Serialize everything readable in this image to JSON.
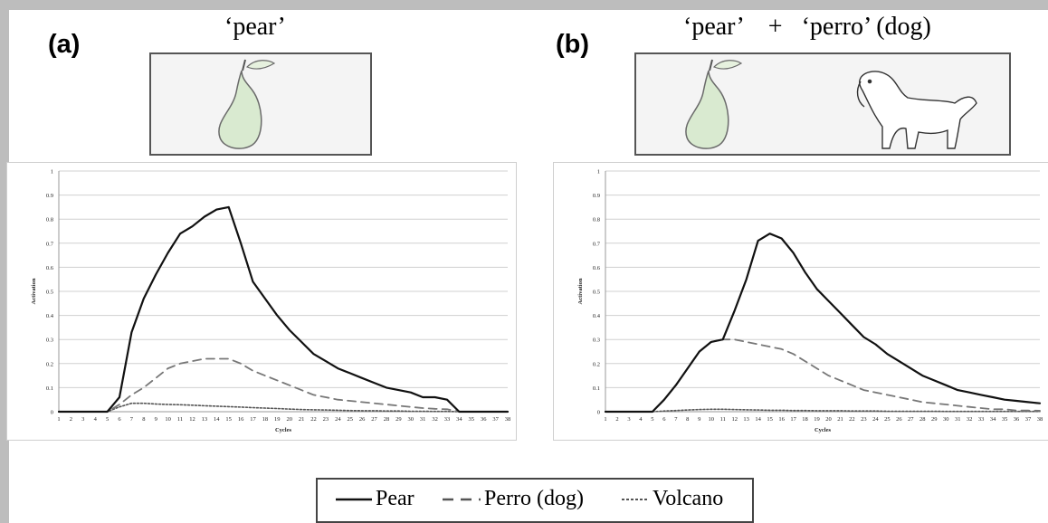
{
  "panels": [
    {
      "label": "(a)",
      "caption": "‘pear’"
    },
    {
      "label": "(b)",
      "caption": "‘pear’    +   ‘perro’ (dog)"
    }
  ],
  "legend": [
    {
      "label": "Pear",
      "style": "solid"
    },
    {
      "label": "Perro (dog)",
      "style": "dashed"
    },
    {
      "label": "Volcano",
      "style": "dotted"
    }
  ],
  "colors": {
    "pear": "#111111",
    "perro": "#777777",
    "volcano": "#555555",
    "grid": "#d0d0d0",
    "fruit": "#d9ead0"
  },
  "chart_data": [
    {
      "type": "line",
      "xlabel": "Cycles",
      "ylabel": "Activation",
      "ylim": [
        0,
        1
      ],
      "xlim": [
        1,
        38
      ],
      "yticks": [
        "0",
        "0.1",
        "0.2",
        "0.3",
        "0.4",
        "0.5",
        "0.6",
        "0.7",
        "0.8",
        "0.9",
        "1"
      ],
      "x": [
        1,
        2,
        3,
        4,
        5,
        6,
        7,
        8,
        9,
        10,
        11,
        12,
        13,
        14,
        15,
        16,
        17,
        18,
        19,
        20,
        21,
        22,
        23,
        24,
        25,
        26,
        27,
        28,
        29,
        30,
        31,
        32,
        33,
        34,
        35,
        36,
        37,
        38
      ],
      "series": [
        {
          "name": "Pear",
          "style": "solid",
          "values": [
            0,
            0,
            0,
            0,
            0,
            0.06,
            0.33,
            0.47,
            0.57,
            0.66,
            0.74,
            0.77,
            0.81,
            0.84,
            0.85,
            0.7,
            0.54,
            0.47,
            0.4,
            0.34,
            0.29,
            0.24,
            0.21,
            0.18,
            0.16,
            0.14,
            0.12,
            0.1,
            0.09,
            0.08,
            0.06,
            0.06,
            0.05,
            0,
            0,
            0,
            0,
            0
          ]
        },
        {
          "name": "Perro (dog)",
          "style": "dashed",
          "values": [
            0,
            0,
            0,
            0,
            0,
            0.03,
            0.07,
            0.1,
            0.14,
            0.18,
            0.2,
            0.21,
            0.22,
            0.22,
            0.22,
            0.2,
            0.17,
            0.15,
            0.13,
            0.11,
            0.09,
            0.07,
            0.06,
            0.05,
            0.045,
            0.04,
            0.035,
            0.03,
            0.025,
            0.02,
            0.015,
            0.012,
            0.01,
            0,
            0,
            0,
            0,
            0
          ]
        },
        {
          "name": "Volcano",
          "style": "dotted",
          "values": [
            0,
            0,
            0,
            0,
            0,
            0.02,
            0.035,
            0.035,
            0.032,
            0.03,
            0.029,
            0.027,
            0.025,
            0.023,
            0.021,
            0.019,
            0.017,
            0.015,
            0.013,
            0.011,
            0.009,
            0.008,
            0.007,
            0.006,
            0.005,
            0.004,
            0.004,
            0.003,
            0.003,
            0.002,
            0.002,
            0.001,
            0.001,
            0,
            0,
            0,
            0,
            0
          ]
        }
      ]
    },
    {
      "type": "line",
      "xlabel": "Cycles",
      "ylabel": "Activation",
      "ylim": [
        0,
        1
      ],
      "xlim": [
        1,
        38
      ],
      "yticks": [
        "0",
        "0.1",
        "0.2",
        "0.3",
        "0.4",
        "0.5",
        "0.6",
        "0.7",
        "0.8",
        "0.9",
        "1"
      ],
      "x": [
        1,
        2,
        3,
        4,
        5,
        6,
        7,
        8,
        9,
        10,
        11,
        12,
        13,
        14,
        15,
        16,
        17,
        18,
        19,
        20,
        21,
        22,
        23,
        24,
        25,
        26,
        27,
        28,
        29,
        30,
        31,
        32,
        33,
        34,
        35,
        36,
        37,
        38
      ],
      "series": [
        {
          "name": "Pear",
          "style": "solid",
          "values": [
            0,
            0,
            0,
            0,
            0,
            0.05,
            0.11,
            0.18,
            0.25,
            0.29,
            0.3,
            0.42,
            0.55,
            0.71,
            0.74,
            0.72,
            0.66,
            0.58,
            0.51,
            0.46,
            0.41,
            0.36,
            0.31,
            0.28,
            0.24,
            0.21,
            0.18,
            0.15,
            0.13,
            0.11,
            0.09,
            0.08,
            0.07,
            0.06,
            0.05,
            0.045,
            0.04,
            0.035
          ]
        },
        {
          "name": "Perro (dog)",
          "style": "dashed",
          "values": [
            0,
            0,
            0,
            0,
            0,
            0.05,
            0.11,
            0.18,
            0.25,
            0.29,
            0.3,
            0.3,
            0.29,
            0.28,
            0.27,
            0.26,
            0.24,
            0.21,
            0.18,
            0.15,
            0.13,
            0.11,
            0.09,
            0.08,
            0.07,
            0.06,
            0.05,
            0.04,
            0.035,
            0.03,
            0.025,
            0.02,
            0.015,
            0.01,
            0.01,
            0.005,
            0.005,
            0.004
          ]
        },
        {
          "name": "Volcano",
          "style": "dotted",
          "values": [
            0,
            0,
            0,
            0,
            0,
            0.003,
            0.005,
            0.007,
            0.009,
            0.01,
            0.01,
            0.009,
            0.008,
            0.007,
            0.006,
            0.006,
            0.005,
            0.005,
            0.004,
            0.004,
            0.004,
            0.003,
            0.003,
            0.003,
            0.002,
            0.002,
            0.002,
            0.002,
            0.002,
            0.001,
            0.001,
            0.001,
            0.001,
            0.001,
            0.001,
            0.001,
            0.001,
            0.001
          ]
        }
      ]
    }
  ]
}
